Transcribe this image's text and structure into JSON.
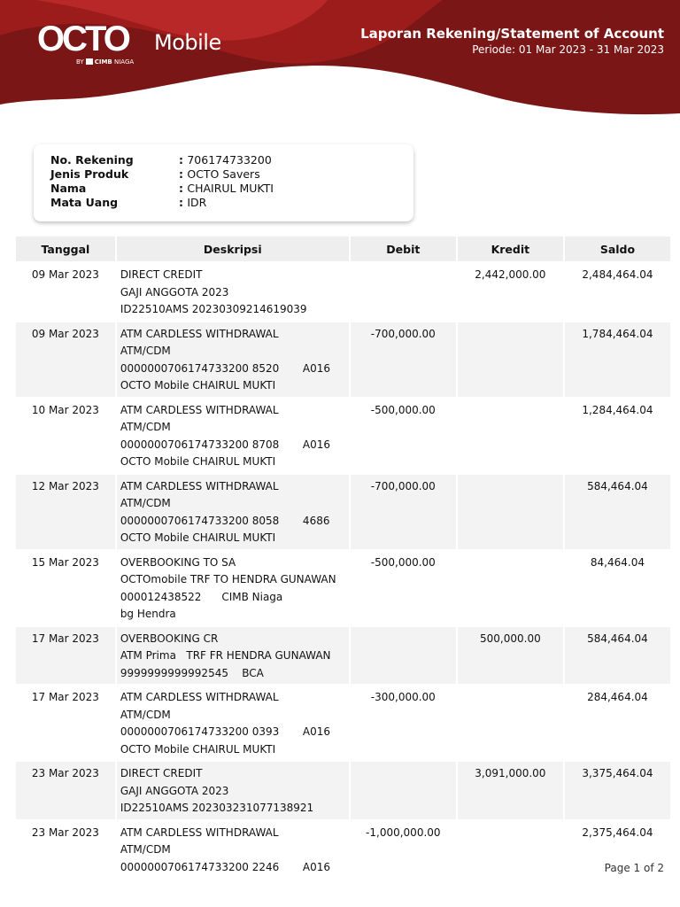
{
  "brand": {
    "logo_text": "OCTO",
    "logo_suffix": "Mobile",
    "by_text": "BY",
    "bank": "CIMB",
    "bank_suffix": "NIAGA",
    "color": "#8b1a1a"
  },
  "header": {
    "title": "Laporan Rekening/Statement of Account",
    "period": "Periode: 01 Mar 2023 - 31 Mar 2023"
  },
  "account": [
    {
      "label": "No. Rekening",
      "value": "706174733200"
    },
    {
      "label": "Jenis Produk",
      "value": "OCTO Savers"
    },
    {
      "label": "Nama",
      "value": "CHAIRUL MUKTI"
    },
    {
      "label": "Mata Uang",
      "value": "IDR"
    }
  ],
  "table": {
    "columns": [
      "Tanggal",
      "Deskripsi",
      "Debit",
      "Kredit",
      "Saldo"
    ],
    "rows": [
      {
        "date": "09 Mar 2023",
        "desc": [
          "DIRECT CREDIT",
          "GAJI ANGGOTA 2023",
          "ID22510AMS 20230309214619039"
        ],
        "debit": "",
        "kredit": "2,442,000.00",
        "saldo": "2,484,464.04"
      },
      {
        "date": "09 Mar 2023",
        "desc": [
          "ATM CARDLESS WITHDRAWAL",
          "ATM/CDM",
          "0000000706174733200 8520       A016",
          "OCTO Mobile CHAIRUL MUKTI"
        ],
        "debit": "-700,000.00",
        "kredit": "",
        "saldo": "1,784,464.04"
      },
      {
        "date": "10 Mar 2023",
        "desc": [
          "ATM CARDLESS WITHDRAWAL",
          "ATM/CDM",
          "0000000706174733200 8708       A016",
          "OCTO Mobile CHAIRUL MUKTI"
        ],
        "debit": "-500,000.00",
        "kredit": "",
        "saldo": "1,284,464.04"
      },
      {
        "date": "12 Mar 2023",
        "desc": [
          "ATM CARDLESS WITHDRAWAL",
          "ATM/CDM",
          "0000000706174733200 8058       4686",
          "OCTO Mobile CHAIRUL MUKTI"
        ],
        "debit": "-700,000.00",
        "kredit": "",
        "saldo": "584,464.04"
      },
      {
        "date": "15 Mar 2023",
        "desc": [
          "OVERBOOKING TO SA",
          "OCTOmobile TRF TO HENDRA GUNAWAN",
          "000012438522      CIMB Niaga",
          "bg Hendra"
        ],
        "debit": "-500,000.00",
        "kredit": "",
        "saldo": "84,464.04"
      },
      {
        "date": "17 Mar 2023",
        "desc": [
          "OVERBOOKING CR",
          "ATM Prima   TRF FR HENDRA GUNAWAN",
          "9999999999992545    BCA"
        ],
        "debit": "",
        "kredit": "500,000.00",
        "saldo": "584,464.04"
      },
      {
        "date": "17 Mar 2023",
        "desc": [
          "ATM CARDLESS WITHDRAWAL",
          "ATM/CDM",
          "0000000706174733200 0393       A016",
          "OCTO Mobile CHAIRUL MUKTI"
        ],
        "debit": "-300,000.00",
        "kredit": "",
        "saldo": "284,464.04"
      },
      {
        "date": "23 Mar 2023",
        "desc": [
          "DIRECT CREDIT",
          "GAJI ANGGOTA 2023",
          "ID22510AMS 202303231077138921"
        ],
        "debit": "",
        "kredit": "3,091,000.00",
        "saldo": "3,375,464.04"
      },
      {
        "date": "23 Mar 2023",
        "desc": [
          "ATM CARDLESS WITHDRAWAL",
          "ATM/CDM",
          "0000000706174733200 2246       A016"
        ],
        "debit": "-1,000,000.00",
        "kredit": "",
        "saldo": "2,375,464.04"
      }
    ]
  },
  "footer": {
    "page": "Page 1 of 2"
  }
}
